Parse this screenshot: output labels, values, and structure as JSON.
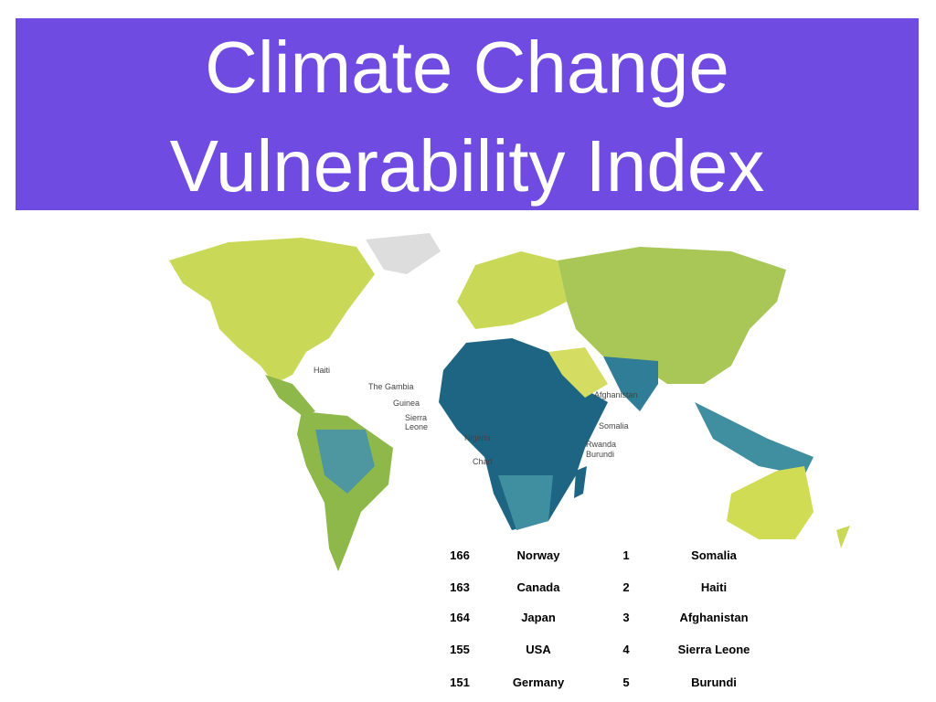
{
  "header": {
    "title_lines": [
      "Climate Change",
      "Vulnerability Index"
    ]
  },
  "map": {
    "labels": [
      "Haiti",
      "The Gambia",
      "Guinea",
      "Sierra Leone",
      "Nigeria",
      "Chad",
      "Afghanistan",
      "Somalia",
      "Rwanda",
      "Burundi"
    ]
  },
  "table": {
    "rows": [
      [
        166,
        "Norway",
        1,
        "Somalia"
      ],
      [
        163,
        "Canada",
        2,
        "Haiti"
      ],
      [
        164,
        "Japan",
        3,
        "Afghanistan"
      ],
      [
        155,
        "USA",
        4,
        "Sierra Leone"
      ],
      [
        151,
        "Germany",
        5,
        "Burundi"
      ]
    ]
  }
}
